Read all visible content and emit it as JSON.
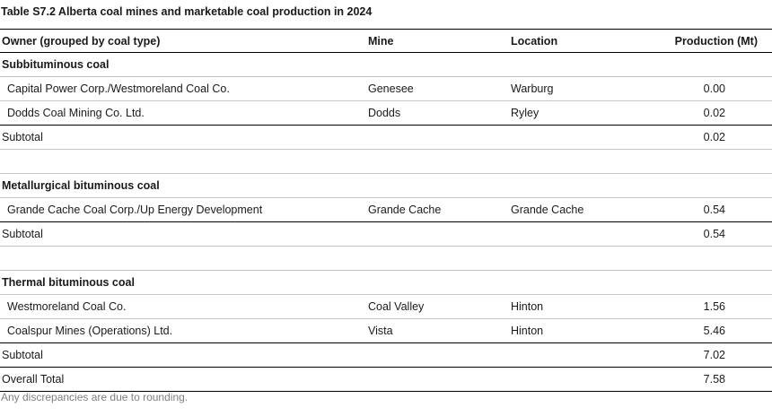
{
  "title": "Table S7.2  Alberta coal mines and marketable coal production in 2024",
  "headers": {
    "owner": "Owner (grouped by coal type)",
    "mine": "Mine",
    "location": "Location",
    "production": "Production (Mt)"
  },
  "groups": [
    {
      "name": "Subbituminous coal",
      "rows": [
        {
          "owner": "Capital Power Corp./Westmoreland Coal Co.",
          "mine": "Genesee",
          "location": "Warburg",
          "production": "0.00"
        },
        {
          "owner": "Dodds Coal Mining Co. Ltd.",
          "mine": "Dodds",
          "location": "Ryley",
          "production": "0.02"
        }
      ],
      "subtotal_label": "Subtotal",
      "subtotal": "0.02"
    },
    {
      "name": "Metallurgical bituminous coal",
      "rows": [
        {
          "owner": "Grande Cache Coal Corp./Up Energy Development",
          "mine": "Grande Cache",
          "location": "Grande Cache",
          "production": "0.54"
        }
      ],
      "subtotal_label": "Subtotal",
      "subtotal": "0.54"
    },
    {
      "name": "Thermal bituminous coal",
      "rows": [
        {
          "owner": "Westmoreland Coal Co.",
          "mine": "Coal Valley",
          "location": "Hinton",
          "production": "1.56"
        },
        {
          "owner": "Coalspur Mines (Operations) Ltd.",
          "mine": "Vista",
          "location": "Hinton",
          "production": "5.46"
        }
      ],
      "subtotal_label": "Subtotal",
      "subtotal": "7.02"
    }
  ],
  "overall_total_label": "Overall Total",
  "overall_total": "7.58",
  "footnote": "Any discrepancies are due to rounding."
}
